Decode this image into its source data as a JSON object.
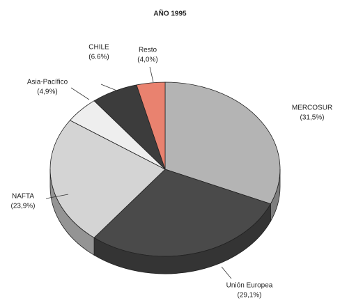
{
  "chart_data": {
    "type": "pie",
    "title": "AÑO 1995",
    "categories": [
      "MERCOSUR",
      "Unión Europea",
      "NAFTA",
      "Asia-Pacífico",
      "CHILE",
      "Resto"
    ],
    "values": [
      31.5,
      29.1,
      23.9,
      4.9,
      6.6,
      4.0
    ],
    "value_labels": [
      "(31,5%)",
      "(29,1%)",
      "(23,9%)",
      "(4,9%)",
      "(6.6%)",
      "(4,0%)"
    ],
    "colors": [
      "#b4b4b4",
      "#4a4a4a",
      "#d4d4d4",
      "#eeeeee",
      "#3c3c3c",
      "#e9826f"
    ]
  }
}
